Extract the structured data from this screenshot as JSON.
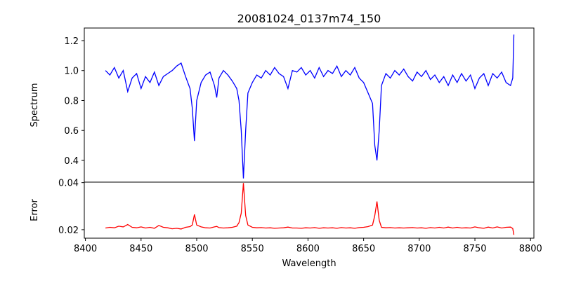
{
  "chart_data": [
    {
      "type": "line",
      "title": "20081024_0137m74_150",
      "xlabel": "",
      "ylabel": "Spectrum",
      "xlim": [
        8399,
        8803
      ],
      "ylim": [
        0.255,
        1.284
      ],
      "yticks": [
        0.4,
        0.6,
        0.8,
        1.0,
        1.2
      ],
      "ytick_labels": [
        "0.4",
        "0.6",
        "0.8",
        "1.0",
        "1.2"
      ],
      "grid": false,
      "series": [
        {
          "name": "Spectrum",
          "color": "#0000ff",
          "x": [
            8418,
            8422,
            8426,
            8430,
            8434,
            8438,
            8442,
            8446,
            8450,
            8454,
            8458,
            8462,
            8466,
            8470,
            8474,
            8478,
            8482,
            8486,
            8490,
            8494,
            8496,
            8498,
            8500,
            8504,
            8508,
            8512,
            8516,
            8518,
            8520,
            8524,
            8528,
            8532,
            8536,
            8538,
            8540,
            8542,
            8544,
            8546,
            8550,
            8554,
            8558,
            8562,
            8566,
            8570,
            8574,
            8578,
            8582,
            8586,
            8590,
            8594,
            8598,
            8602,
            8606,
            8610,
            8614,
            8618,
            8622,
            8626,
            8630,
            8634,
            8638,
            8642,
            8646,
            8650,
            8654,
            8658,
            8660,
            8662,
            8664,
            8666,
            8670,
            8674,
            8678,
            8682,
            8686,
            8690,
            8694,
            8698,
            8702,
            8706,
            8710,
            8714,
            8718,
            8722,
            8726,
            8730,
            8734,
            8738,
            8742,
            8746,
            8750,
            8754,
            8758,
            8762,
            8766,
            8770,
            8774,
            8778,
            8782,
            8784,
            8785
          ],
          "y": [
            1.0,
            0.97,
            1.02,
            0.95,
            1.0,
            0.86,
            0.95,
            0.98,
            0.88,
            0.96,
            0.92,
            0.99,
            0.9,
            0.96,
            0.98,
            1.0,
            1.03,
            1.05,
            0.96,
            0.88,
            0.75,
            0.53,
            0.8,
            0.92,
            0.97,
            0.99,
            0.9,
            0.82,
            0.95,
            1.0,
            0.97,
            0.93,
            0.88,
            0.8,
            0.6,
            0.28,
            0.6,
            0.85,
            0.92,
            0.97,
            0.95,
            1.0,
            0.97,
            1.02,
            0.98,
            0.96,
            0.88,
            1.0,
            0.99,
            1.02,
            0.97,
            1.0,
            0.95,
            1.02,
            0.96,
            1.0,
            0.98,
            1.03,
            0.96,
            1.0,
            0.97,
            1.02,
            0.95,
            0.92,
            0.85,
            0.78,
            0.5,
            0.4,
            0.6,
            0.9,
            0.98,
            0.95,
            1.0,
            0.97,
            1.01,
            0.96,
            0.93,
            0.99,
            0.96,
            1.0,
            0.94,
            0.97,
            0.92,
            0.96,
            0.9,
            0.97,
            0.92,
            0.98,
            0.93,
            0.97,
            0.88,
            0.95,
            0.98,
            0.9,
            0.98,
            0.95,
            0.99,
            0.92,
            0.9,
            0.95,
            1.24
          ]
        }
      ]
    },
    {
      "type": "line",
      "xlabel": "Wavelength",
      "ylabel": "Error",
      "xlim": [
        8399,
        8803
      ],
      "ylim": [
        0.0164,
        0.0402
      ],
      "xticks": [
        8400,
        8450,
        8500,
        8550,
        8600,
        8650,
        8700,
        8750,
        8800
      ],
      "xtick_labels": [
        "8400",
        "8450",
        "8500",
        "8550",
        "8600",
        "8650",
        "8700",
        "8750",
        "8800"
      ],
      "yticks": [
        0.02,
        0.04
      ],
      "ytick_labels": [
        "0.02",
        "0.04"
      ],
      "grid": false,
      "series": [
        {
          "name": "Error",
          "color": "#ff0000",
          "x": [
            8418,
            8422,
            8426,
            8430,
            8434,
            8438,
            8442,
            8446,
            8450,
            8454,
            8458,
            8462,
            8466,
            8470,
            8474,
            8478,
            8482,
            8486,
            8490,
            8494,
            8496,
            8498,
            8500,
            8504,
            8508,
            8512,
            8516,
            8518,
            8520,
            8524,
            8528,
            8532,
            8536,
            8538,
            8540,
            8542,
            8544,
            8546,
            8550,
            8554,
            8558,
            8562,
            8566,
            8570,
            8574,
            8578,
            8582,
            8586,
            8590,
            8594,
            8598,
            8602,
            8606,
            8610,
            8614,
            8618,
            8622,
            8626,
            8630,
            8634,
            8638,
            8642,
            8646,
            8650,
            8654,
            8658,
            8660,
            8662,
            8664,
            8666,
            8670,
            8674,
            8678,
            8682,
            8686,
            8690,
            8694,
            8698,
            8702,
            8706,
            8710,
            8714,
            8718,
            8722,
            8726,
            8730,
            8734,
            8738,
            8742,
            8746,
            8750,
            8754,
            8758,
            8762,
            8766,
            8770,
            8774,
            8778,
            8782,
            8784,
            8785
          ],
          "y": [
            0.0207,
            0.021,
            0.0208,
            0.0215,
            0.0212,
            0.0222,
            0.021,
            0.0208,
            0.0212,
            0.0207,
            0.021,
            0.0206,
            0.0218,
            0.021,
            0.0208,
            0.0204,
            0.0206,
            0.0203,
            0.021,
            0.0213,
            0.022,
            0.0265,
            0.022,
            0.0212,
            0.0208,
            0.0207,
            0.0212,
            0.0214,
            0.0209,
            0.0207,
            0.0208,
            0.021,
            0.0215,
            0.023,
            0.027,
            0.0398,
            0.026,
            0.022,
            0.021,
            0.0208,
            0.0209,
            0.0207,
            0.0208,
            0.0206,
            0.0207,
            0.0208,
            0.0211,
            0.0207,
            0.0207,
            0.0206,
            0.0208,
            0.0207,
            0.0209,
            0.0206,
            0.0208,
            0.0207,
            0.0208,
            0.0206,
            0.0209,
            0.0207,
            0.0208,
            0.0206,
            0.0209,
            0.021,
            0.0213,
            0.022,
            0.026,
            0.032,
            0.024,
            0.021,
            0.0208,
            0.0209,
            0.0207,
            0.0208,
            0.0207,
            0.0208,
            0.0209,
            0.0207,
            0.0208,
            0.0206,
            0.0209,
            0.0207,
            0.021,
            0.0207,
            0.0211,
            0.0207,
            0.021,
            0.0207,
            0.0208,
            0.0207,
            0.0212,
            0.0208,
            0.0206,
            0.0211,
            0.0207,
            0.0212,
            0.0207,
            0.021,
            0.0211,
            0.0205,
            0.0178
          ]
        }
      ]
    }
  ]
}
